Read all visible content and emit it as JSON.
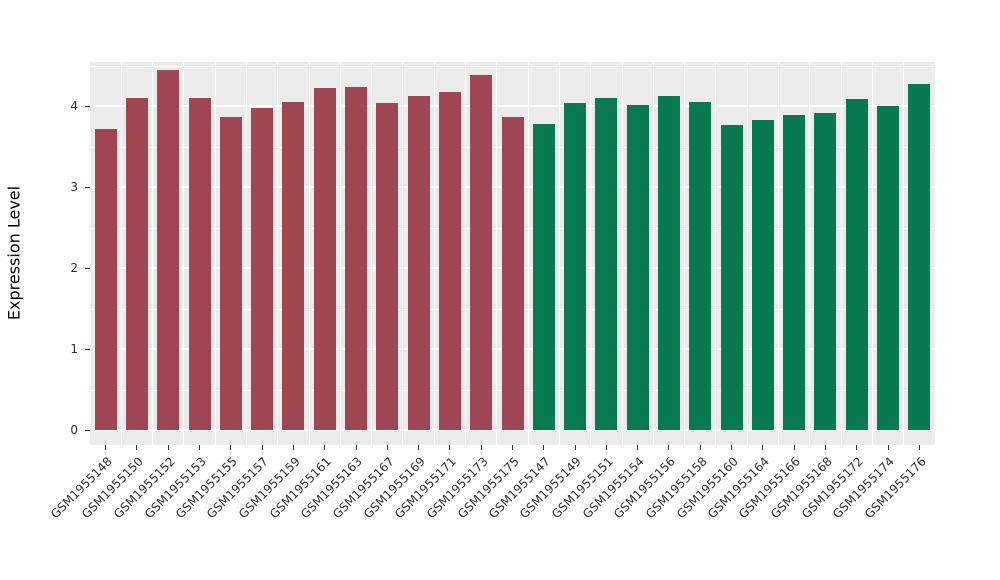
{
  "chart_data": {
    "type": "bar",
    "title": "",
    "xlabel": "",
    "ylabel": "Expression Level",
    "ylim": [
      0,
      4.55
    ],
    "yticks": [
      0,
      1,
      2,
      3,
      4
    ],
    "yticks_minor": [
      0.5,
      1.5,
      2.5,
      3.5,
      4.5
    ],
    "grid": "on",
    "legend": "none",
    "panel_bg": "#EBEBEB",
    "grid_color": "#FFFFFF",
    "categories": [
      "GSM1955148",
      "GSM1955150",
      "GSM1955152",
      "GSM1955153",
      "GSM1955155",
      "GSM1955157",
      "GSM1955159",
      "GSM1955161",
      "GSM1955163",
      "GSM1955167",
      "GSM1955169",
      "GSM1955171",
      "GSM1955173",
      "GSM1955175",
      "GSM1955147",
      "GSM1955149",
      "GSM1955151",
      "GSM1955154",
      "GSM1955156",
      "GSM1955158",
      "GSM1955160",
      "GSM1955164",
      "GSM1955166",
      "GSM1955168",
      "GSM1955172",
      "GSM1955174",
      "GSM1955176"
    ],
    "values": [
      3.72,
      4.1,
      4.45,
      4.1,
      3.87,
      3.97,
      4.05,
      4.22,
      4.24,
      4.04,
      4.12,
      4.17,
      4.38,
      3.87,
      3.78,
      4.04,
      4.1,
      4.01,
      4.12,
      4.05,
      3.77,
      3.83,
      3.89,
      3.91,
      4.09,
      4.0,
      4.27
    ],
    "bar_groups": [
      "group1",
      "group1",
      "group1",
      "group1",
      "group1",
      "group1",
      "group1",
      "group1",
      "group1",
      "group1",
      "group1",
      "group1",
      "group1",
      "group1",
      "group2",
      "group2",
      "group2",
      "group2",
      "group2",
      "group2",
      "group2",
      "group2",
      "group2",
      "group2",
      "group2",
      "group2",
      "group2"
    ],
    "group_colors": {
      "group1": "#A04552",
      "group2": "#077B4F"
    },
    "tick_label_color": "#303030",
    "axis_title_color": "#000000"
  }
}
